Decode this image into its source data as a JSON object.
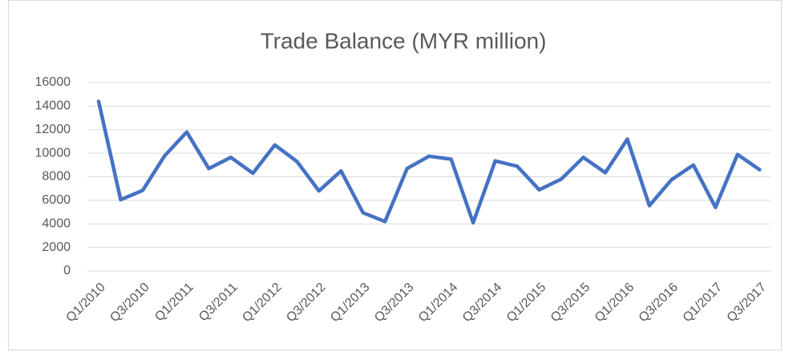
{
  "chart_data": {
    "type": "line",
    "title": "Trade Balance (MYR million)",
    "categories": [
      "Q1/2010",
      null,
      "Q3/2010",
      null,
      "Q1/2011",
      null,
      "Q3/2011",
      null,
      "Q1/2012",
      null,
      "Q3/2012",
      null,
      "Q1/2013",
      null,
      "Q3/2013",
      null,
      "Q1/2014",
      null,
      "Q3/2014",
      null,
      "Q1/2015",
      null,
      "Q3/2015",
      null,
      "Q1/2016",
      null,
      "Q3/2016",
      null,
      "Q1/2017",
      null,
      "Q3/2017"
    ],
    "values": [
      14400,
      6050,
      6850,
      9800,
      11800,
      8700,
      9650,
      8300,
      10700,
      9300,
      6800,
      8500,
      4950,
      4200,
      8700,
      9750,
      9500,
      4100,
      9350,
      8900,
      6900,
      7800,
      9650,
      8350,
      11200,
      5550,
      7750,
      9000,
      5400,
      9900,
      8600
    ],
    "color": "#4472c4",
    "ylim": [
      0,
      16000
    ],
    "yticks": [
      0,
      2000,
      4000,
      6000,
      8000,
      10000,
      12000,
      14000,
      16000
    ],
    "grid": true
  }
}
